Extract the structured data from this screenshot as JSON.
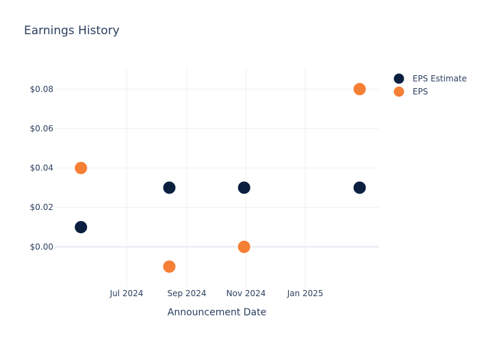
{
  "chart_data": {
    "type": "scatter",
    "title": "Earnings History",
    "xlabel": "Announcement Date",
    "ylabel": "",
    "x_ticks": [
      "Jul 2024",
      "Sep 2024",
      "Nov 2024",
      "Jan 2025"
    ],
    "x_tick_dates": [
      "2024-07-01",
      "2024-09-01",
      "2024-11-01",
      "2025-01-01"
    ],
    "xlim": [
      "2024-04-18",
      "2025-03-18"
    ],
    "y_ticks": [
      "$0.00",
      "$0.02",
      "$0.04",
      "$0.06",
      "$0.08"
    ],
    "y_tick_values": [
      0,
      0.02,
      0.04,
      0.06,
      0.08
    ],
    "ylim": [
      -0.0205,
      0.0905
    ],
    "grid": true,
    "legend_position": "top-right",
    "series": [
      {
        "name": "EPS Estimate",
        "color": "#0b1f3f",
        "points": [
          {
            "x": "2024-05-15",
            "y": 0.01
          },
          {
            "x": "2024-08-14",
            "y": 0.03
          },
          {
            "x": "2024-10-30",
            "y": 0.03
          },
          {
            "x": "2025-02-26",
            "y": 0.03
          }
        ]
      },
      {
        "name": "EPS",
        "color": "#f57f35",
        "points": [
          {
            "x": "2024-05-15",
            "y": 0.04
          },
          {
            "x": "2024-08-14",
            "y": -0.01
          },
          {
            "x": "2024-10-30",
            "y": 0.0
          },
          {
            "x": "2025-02-26",
            "y": 0.08
          }
        ]
      }
    ]
  }
}
